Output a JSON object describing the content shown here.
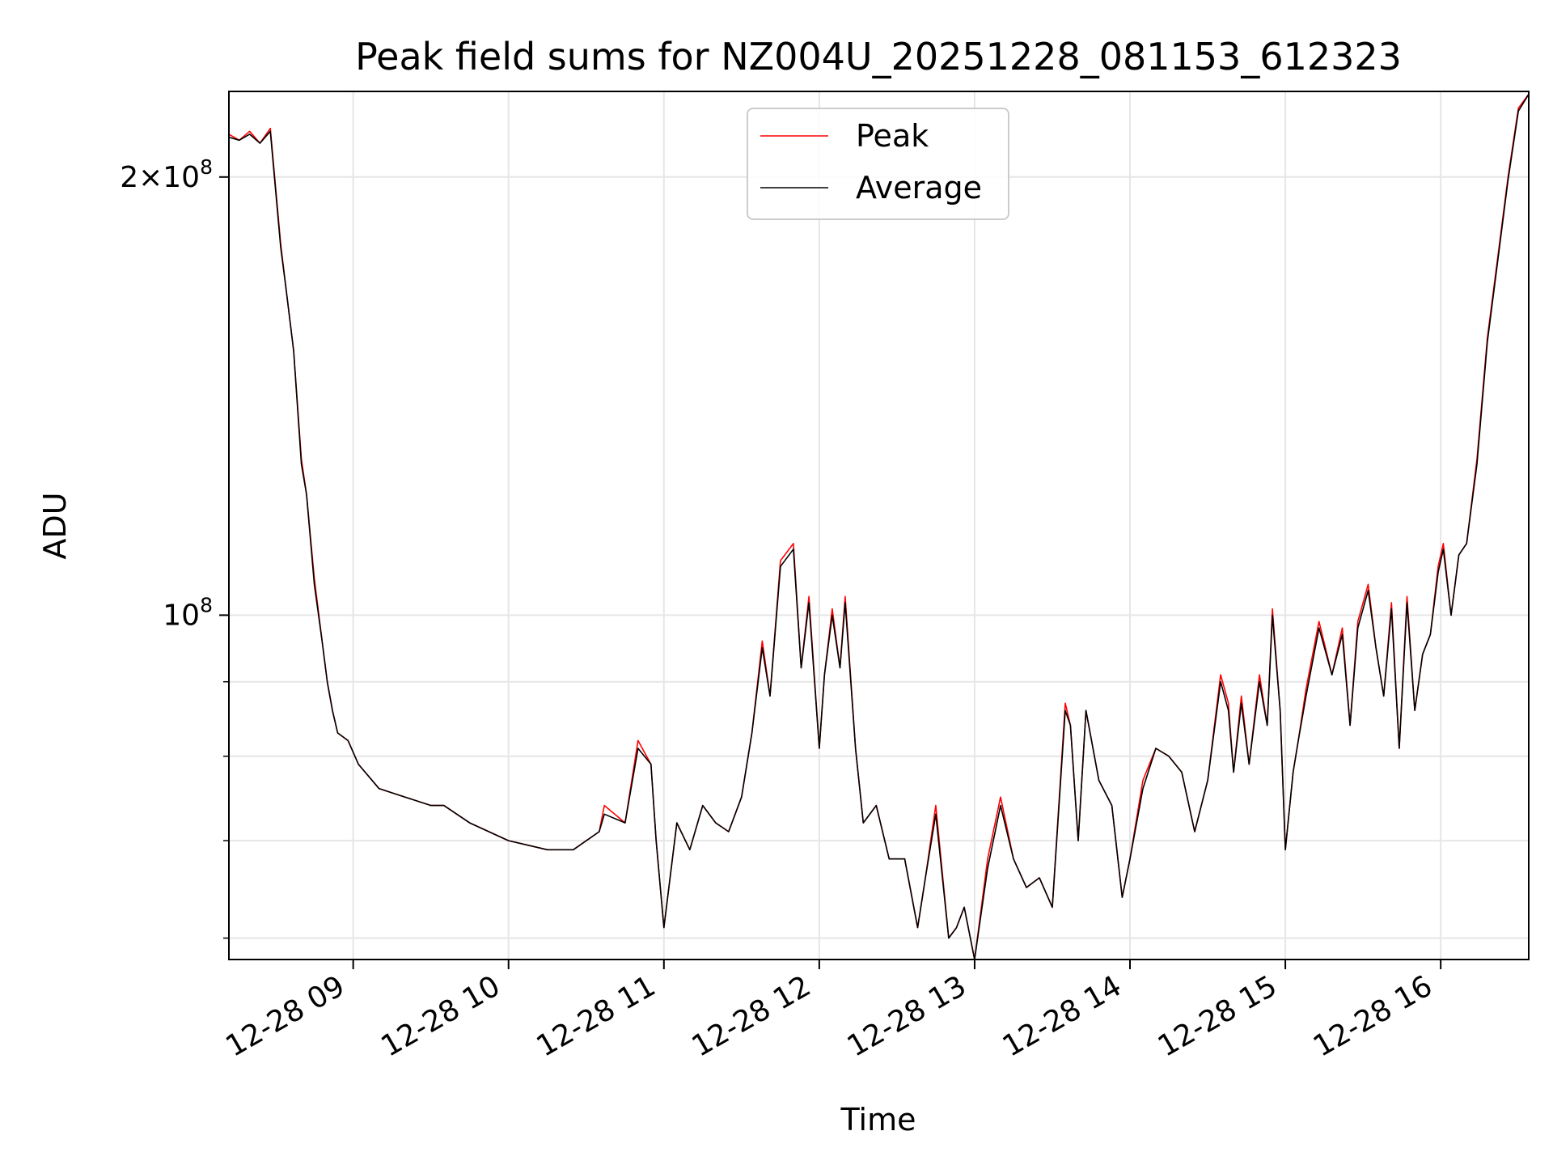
{
  "chart_data": {
    "type": "line",
    "title": "Peak field sums for NZ004U_20251228_081153_612323",
    "xlabel": "Time",
    "ylabel": "ADU",
    "yscale": "log",
    "xlim": [
      "12-28 08:12",
      "12-28 16:34"
    ],
    "ylim": [
      58000000,
      229000000
    ],
    "grid": true,
    "legend": {
      "position": "top-center"
    },
    "x_tick_labels": [
      "12-28 09",
      "12-28 10",
      "12-28 11",
      "12-28 12",
      "12-28 13",
      "12-28 14",
      "12-28 15",
      "12-28 16"
    ],
    "y_major_ticks": [
      {
        "value": 100000000,
        "base": "10",
        "exp": "8"
      },
      {
        "value": 200000000,
        "mant": "2",
        "base": "10",
        "exp": "8"
      }
    ],
    "y_minor_ticks": [
      60000000,
      70000000,
      80000000,
      90000000
    ],
    "colors": {
      "Peak": "#ff0000",
      "Average": "#000000"
    },
    "x": [
      "12-28 08:12",
      "12-28 08:16",
      "12-28 08:20",
      "12-28 08:24",
      "12-28 08:28",
      "12-28 08:32",
      "12-28 08:34",
      "12-28 08:37",
      "12-28 08:40",
      "12-28 08:42",
      "12-28 08:45",
      "12-28 08:48",
      "12-28 08:50",
      "12-28 08:52",
      "12-28 08:54",
      "12-28 08:58",
      "12-28 09:02",
      "12-28 09:10",
      "12-28 09:20",
      "12-28 09:30",
      "12-28 09:35",
      "12-28 09:45",
      "12-28 10:00",
      "12-28 10:15",
      "12-28 10:25",
      "12-28 10:35",
      "12-28 10:37",
      "12-28 10:45",
      "12-28 10:50",
      "12-28 10:55",
      "12-28 10:57",
      "12-28 11:00",
      "12-28 11:05",
      "12-28 11:10",
      "12-28 11:15",
      "12-28 11:20",
      "12-28 11:25",
      "12-28 11:30",
      "12-28 11:34",
      "12-28 11:38",
      "12-28 11:41",
      "12-28 11:45",
      "12-28 11:50",
      "12-28 11:53",
      "12-28 11:56",
      "12-28 12:00",
      "12-28 12:02",
      "12-28 12:05",
      "12-28 12:08",
      "12-28 12:10",
      "12-28 12:14",
      "12-28 12:17",
      "12-28 12:22",
      "12-28 12:27",
      "12-28 12:33",
      "12-28 12:38",
      "12-28 12:41",
      "12-28 12:45",
      "12-28 12:50",
      "12-28 12:53",
      "12-28 12:56",
      "12-28 13:00",
      "12-28 13:05",
      "12-28 13:10",
      "12-28 13:15",
      "12-28 13:20",
      "12-28 13:25",
      "12-28 13:30",
      "12-28 13:35",
      "12-28 13:37",
      "12-28 13:40",
      "12-28 13:43",
      "12-28 13:48",
      "12-28 13:53",
      "12-28 13:57",
      "12-28 14:00",
      "12-28 14:05",
      "12-28 14:10",
      "12-28 14:15",
      "12-28 14:20",
      "12-28 14:25",
      "12-28 14:30",
      "12-28 14:35",
      "12-28 14:38",
      "12-28 14:40",
      "12-28 14:43",
      "12-28 14:46",
      "12-28 14:50",
      "12-28 14:53",
      "12-28 14:55",
      "12-28 14:58",
      "12-28 15:00",
      "12-28 15:03",
      "12-28 15:05",
      "12-28 15:08",
      "12-28 15:13",
      "12-28 15:18",
      "12-28 15:22",
      "12-28 15:25",
      "12-28 15:28",
      "12-28 15:32",
      "12-28 15:35",
      "12-28 15:38",
      "12-28 15:41",
      "12-28 15:44",
      "12-28 15:47",
      "12-28 15:50",
      "12-28 15:53",
      "12-28 15:56",
      "12-28 15:59",
      "12-28 16:01",
      "12-28 16:04",
      "12-28 16:07",
      "12-28 16:10",
      "12-28 16:14",
      "12-28 16:18",
      "12-28 16:22",
      "12-28 16:26",
      "12-28 16:30",
      "12-28 16:34"
    ],
    "series": [
      {
        "name": "Peak",
        "values": [
          214000000,
          212000000,
          215000000,
          211000000,
          216000000,
          180000000,
          168000000,
          152000000,
          128000000,
          121000000,
          106000000,
          96000000,
          90000000,
          86000000,
          83000000,
          82000000,
          79000000,
          76000000,
          75000000,
          74000000,
          74000000,
          72000000,
          70000000,
          69000000,
          69000000,
          71000000,
          74000000,
          72000000,
          82000000,
          79000000,
          70000000,
          61000000,
          72000000,
          69000000,
          74000000,
          72000000,
          71000000,
          75000000,
          83000000,
          96000000,
          88000000,
          109000000,
          112000000,
          92000000,
          103000000,
          81000000,
          91000000,
          101000000,
          92000000,
          103000000,
          81000000,
          72000000,
          74000000,
          68000000,
          68000000,
          61000000,
          66000000,
          74000000,
          60000000,
          61000000,
          63000000,
          58000000,
          68000000,
          75000000,
          68000000,
          65000000,
          66000000,
          63000000,
          87000000,
          84000000,
          70000000,
          86000000,
          77000000,
          74000000,
          64000000,
          68000000,
          77000000,
          81000000,
          80000000,
          78000000,
          71000000,
          77000000,
          91000000,
          87000000,
          78000000,
          88000000,
          79000000,
          91000000,
          84000000,
          101000000,
          86000000,
          69000000,
          78000000,
          82000000,
          89000000,
          99000000,
          91000000,
          98000000,
          84000000,
          99000000,
          105000000,
          95000000,
          88000000,
          102000000,
          81000000,
          103000000,
          86000000,
          94000000,
          97000000,
          108000000,
          112000000,
          100000000,
          110000000,
          112000000,
          128000000,
          155000000,
          176000000,
          200000000,
          223000000,
          228000000
        ]
      },
      {
        "name": "Average",
        "values": [
          213000000,
          212000000,
          214000000,
          211000000,
          215000000,
          179000000,
          168000000,
          152000000,
          127000000,
          121000000,
          105000000,
          96000000,
          90000000,
          86000000,
          83000000,
          82000000,
          79000000,
          76000000,
          75000000,
          74000000,
          74000000,
          72000000,
          70000000,
          69000000,
          69000000,
          71000000,
          73000000,
          72000000,
          81000000,
          79000000,
          70000000,
          61000000,
          72000000,
          69000000,
          74000000,
          72000000,
          71000000,
          75000000,
          83000000,
          95000000,
          88000000,
          108000000,
          111000000,
          92000000,
          102000000,
          81000000,
          91000000,
          100000000,
          92000000,
          102000000,
          81000000,
          72000000,
          74000000,
          68000000,
          68000000,
          61000000,
          66000000,
          73000000,
          60000000,
          61000000,
          63000000,
          58000000,
          67000000,
          74000000,
          68000000,
          65000000,
          66000000,
          63000000,
          86000000,
          84000000,
          70000000,
          86000000,
          77000000,
          74000000,
          64000000,
          68000000,
          76000000,
          81000000,
          80000000,
          78000000,
          71000000,
          77000000,
          90000000,
          86000000,
          78000000,
          87000000,
          79000000,
          90000000,
          84000000,
          100000000,
          86000000,
          69000000,
          78000000,
          82000000,
          88000000,
          98000000,
          91000000,
          97000000,
          84000000,
          98000000,
          104000000,
          95000000,
          88000000,
          101000000,
          81000000,
          102000000,
          86000000,
          94000000,
          97000000,
          107000000,
          111000000,
          100000000,
          110000000,
          112000000,
          127000000,
          154000000,
          175000000,
          199000000,
          222000000,
          228000000
        ]
      }
    ]
  }
}
